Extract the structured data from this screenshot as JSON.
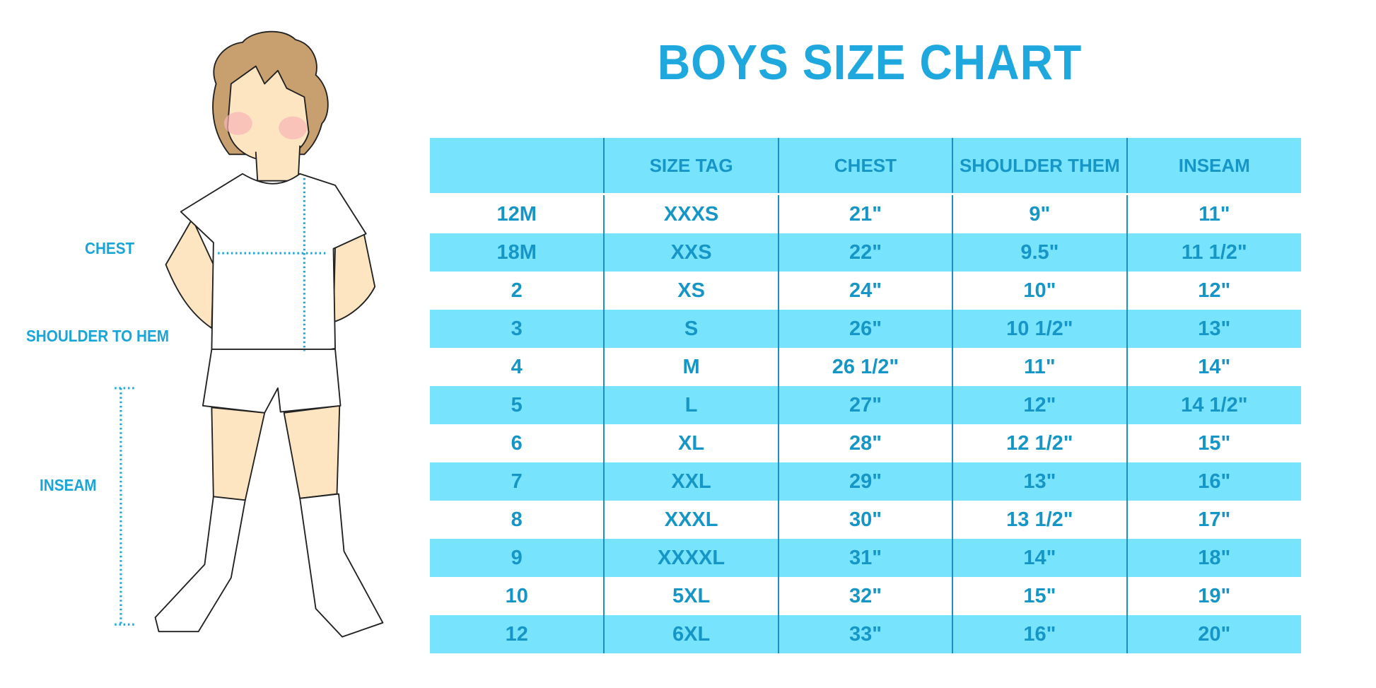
{
  "title": "BOYS SIZE CHART",
  "labels": {
    "chest": "CHEST",
    "shoulder_to_hem": "SHOULDER TO HEM",
    "inseam": "INSEAM"
  },
  "colors": {
    "accent": "#1fa8de",
    "row_fill": "#77e3fd",
    "text": "#1696c6",
    "skin": "#fde5c2",
    "hair": "#c8a070"
  },
  "table": {
    "headers": [
      "",
      "SIZE TAG",
      "CHEST",
      "SHOULDER THEM",
      "INSEAM"
    ],
    "rows": [
      [
        "12M",
        "XXXS",
        "21\"",
        "9\"",
        "11\""
      ],
      [
        "18M",
        "XXS",
        "22\"",
        "9.5\"",
        "11 1/2\""
      ],
      [
        "2",
        "XS",
        "24\"",
        "10\"",
        "12\""
      ],
      [
        "3",
        "S",
        "26\"",
        "10 1/2\"",
        "13\""
      ],
      [
        "4",
        "M",
        "26 1/2\"",
        "11\"",
        "14\""
      ],
      [
        "5",
        "L",
        "27\"",
        "12\"",
        "14 1/2\""
      ],
      [
        "6",
        "XL",
        "28\"",
        "12 1/2\"",
        "15\""
      ],
      [
        "7",
        "XXL",
        "29\"",
        "13\"",
        "16\""
      ],
      [
        "8",
        "XXXL",
        "30\"",
        "13 1/2\"",
        "17\""
      ],
      [
        "9",
        "XXXXL",
        "31\"",
        "14\"",
        "18\""
      ],
      [
        "10",
        "5XL",
        "32\"",
        "15\"",
        "19\""
      ],
      [
        "12",
        "6XL",
        "33\"",
        "16\"",
        "20\""
      ]
    ]
  }
}
